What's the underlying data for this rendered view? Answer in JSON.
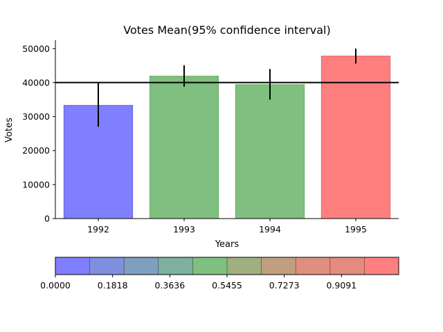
{
  "chart_data": {
    "type": "bar",
    "title": "Votes Mean(95% confidence interval)",
    "xlabel": "Years",
    "ylabel": "Votes",
    "categories": [
      "1992",
      "1993",
      "1994",
      "1995"
    ],
    "values": [
      33300,
      41900,
      39400,
      47800
    ],
    "error_low": [
      27000,
      38800,
      35000,
      45600
    ],
    "error_high": [
      40000,
      45100,
      44000,
      50000
    ],
    "bar_colors": [
      "#7f7fff",
      "#7fbf7f",
      "#7fbf7f",
      "#ff7f7f"
    ],
    "bar_edge_colors": [
      "#5f5fdf",
      "#5faf5f",
      "#5faf5f",
      "#df5f5f"
    ],
    "reference_line": 40000,
    "ylim": [
      0,
      52500
    ],
    "yticks": [
      0,
      10000,
      20000,
      30000,
      40000,
      50000
    ],
    "ytick_labels": [
      "0",
      "10000",
      "20000",
      "30000",
      "40000",
      "50000"
    ],
    "grid": false,
    "colorbar": {
      "colors": [
        "#7f7fff",
        "#7f8fdf",
        "#7f9fbf",
        "#7faf9f",
        "#7fbf7f",
        "#9faf7f",
        "#bf9f7f",
        "#df8f7f",
        "#e58a7f",
        "#ff7f7f"
      ],
      "ticks": [
        0.0,
        0.1818,
        0.3636,
        0.5455,
        0.7273,
        0.9091
      ],
      "tick_labels": [
        "0.0000",
        "0.1818",
        "0.3636",
        "0.5455",
        "0.7273",
        "0.9091"
      ],
      "range": [
        0,
        1.0909
      ]
    }
  }
}
